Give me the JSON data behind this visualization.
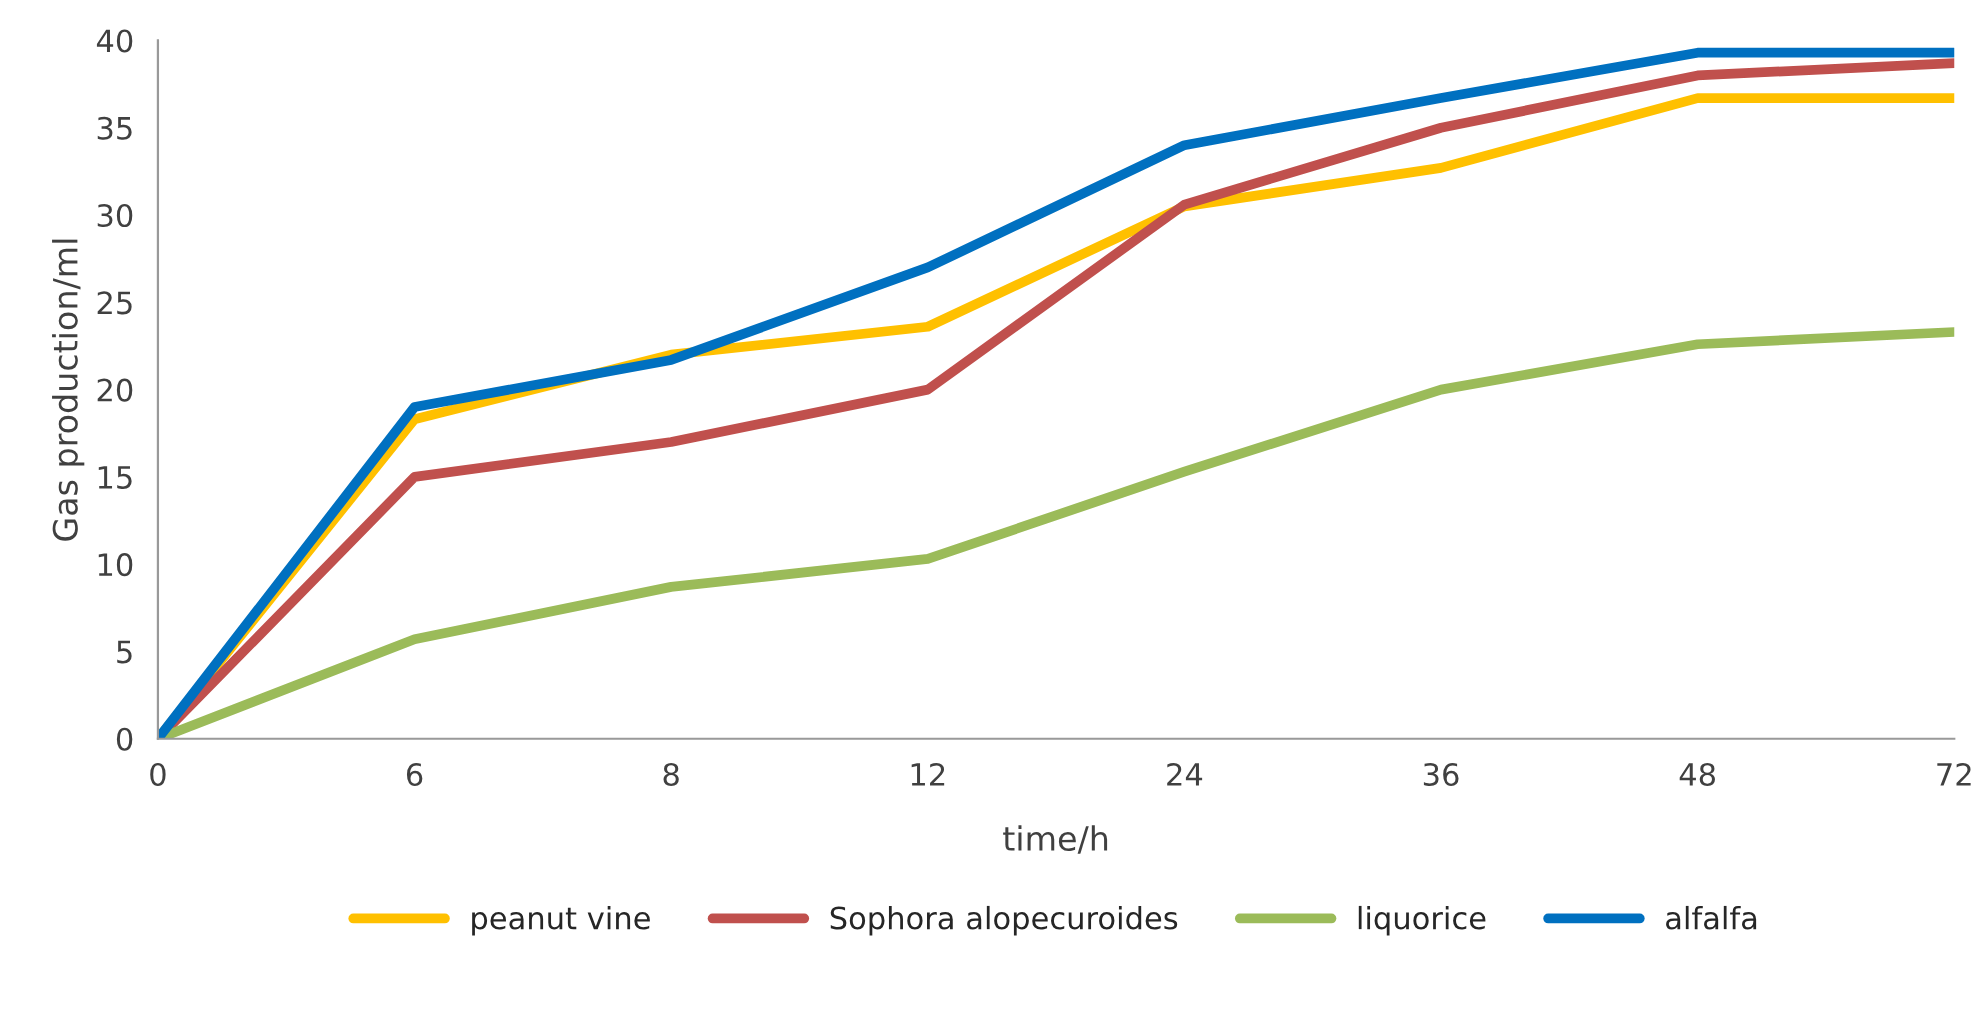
{
  "chart_data": {
    "type": "line",
    "xlabel": "time/h",
    "ylabel": "Gas production/ml",
    "categories": [
      "0",
      "6",
      "8",
      "12",
      "24",
      "36",
      "48",
      "72"
    ],
    "ylim": [
      0,
      40
    ],
    "yticks": [
      0,
      5,
      10,
      15,
      20,
      25,
      30,
      35,
      40
    ],
    "grid": false,
    "legend": "bottom",
    "marker": "none",
    "line_style": "solid",
    "series": [
      {
        "name": "peanut vine",
        "color": "#ffc000",
        "values": [
          0,
          18.3,
          22.0,
          23.6,
          30.5,
          32.7,
          36.7,
          36.7
        ]
      },
      {
        "name": "Sophora alopecuroides",
        "color": "#c0504d",
        "values": [
          0,
          15.0,
          17.0,
          20.0,
          30.6,
          35.0,
          38.0,
          38.7
        ]
      },
      {
        "name": "liquorice",
        "color": "#9bbb59",
        "values": [
          0,
          5.7,
          8.7,
          10.3,
          15.3,
          20.0,
          22.6,
          23.3
        ]
      },
      {
        "name": "alfalfa",
        "color": "#0070c0",
        "values": [
          0,
          19.0,
          21.7,
          27.0,
          34.0,
          36.7,
          39.3,
          39.3
        ]
      }
    ]
  }
}
